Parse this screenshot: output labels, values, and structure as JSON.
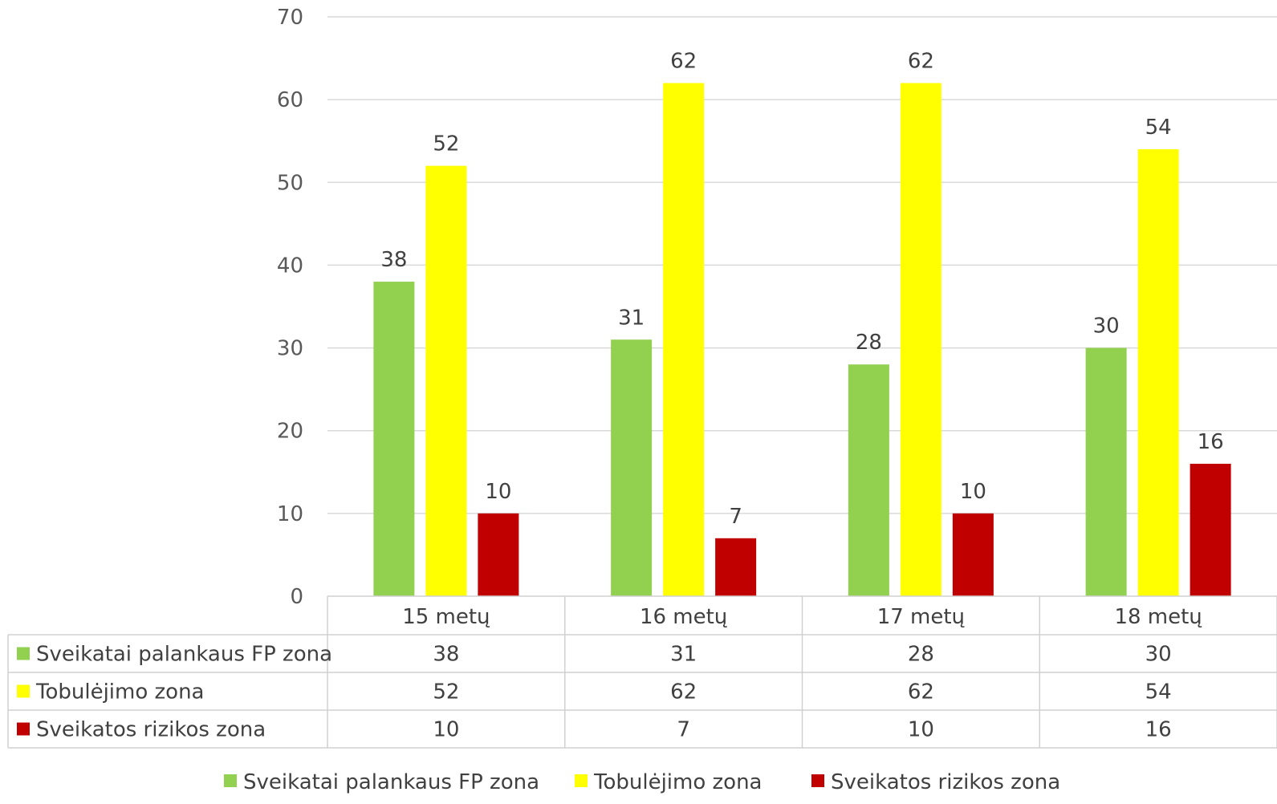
{
  "chart_data": {
    "type": "bar",
    "categories": [
      "15 metų",
      "16 metų",
      "17 metų",
      "18 metų"
    ],
    "series": [
      {
        "name": "Sveikatai palankaus FP zona",
        "color": "#92D050",
        "values": [
          38,
          31,
          28,
          30
        ]
      },
      {
        "name": "Tobulėjimo zona",
        "color": "#FFFF00",
        "values": [
          52,
          62,
          62,
          54
        ]
      },
      {
        "name": "Sveikatos rizikos zona",
        "color": "#C00000",
        "values": [
          10,
          7,
          10,
          16
        ]
      }
    ],
    "ylim": [
      0,
      70
    ],
    "yticks": [
      0,
      10,
      20,
      30,
      40,
      50,
      60,
      70
    ],
    "grid": true,
    "data_labels": true,
    "data_table": true,
    "legend_position": "bottom"
  }
}
